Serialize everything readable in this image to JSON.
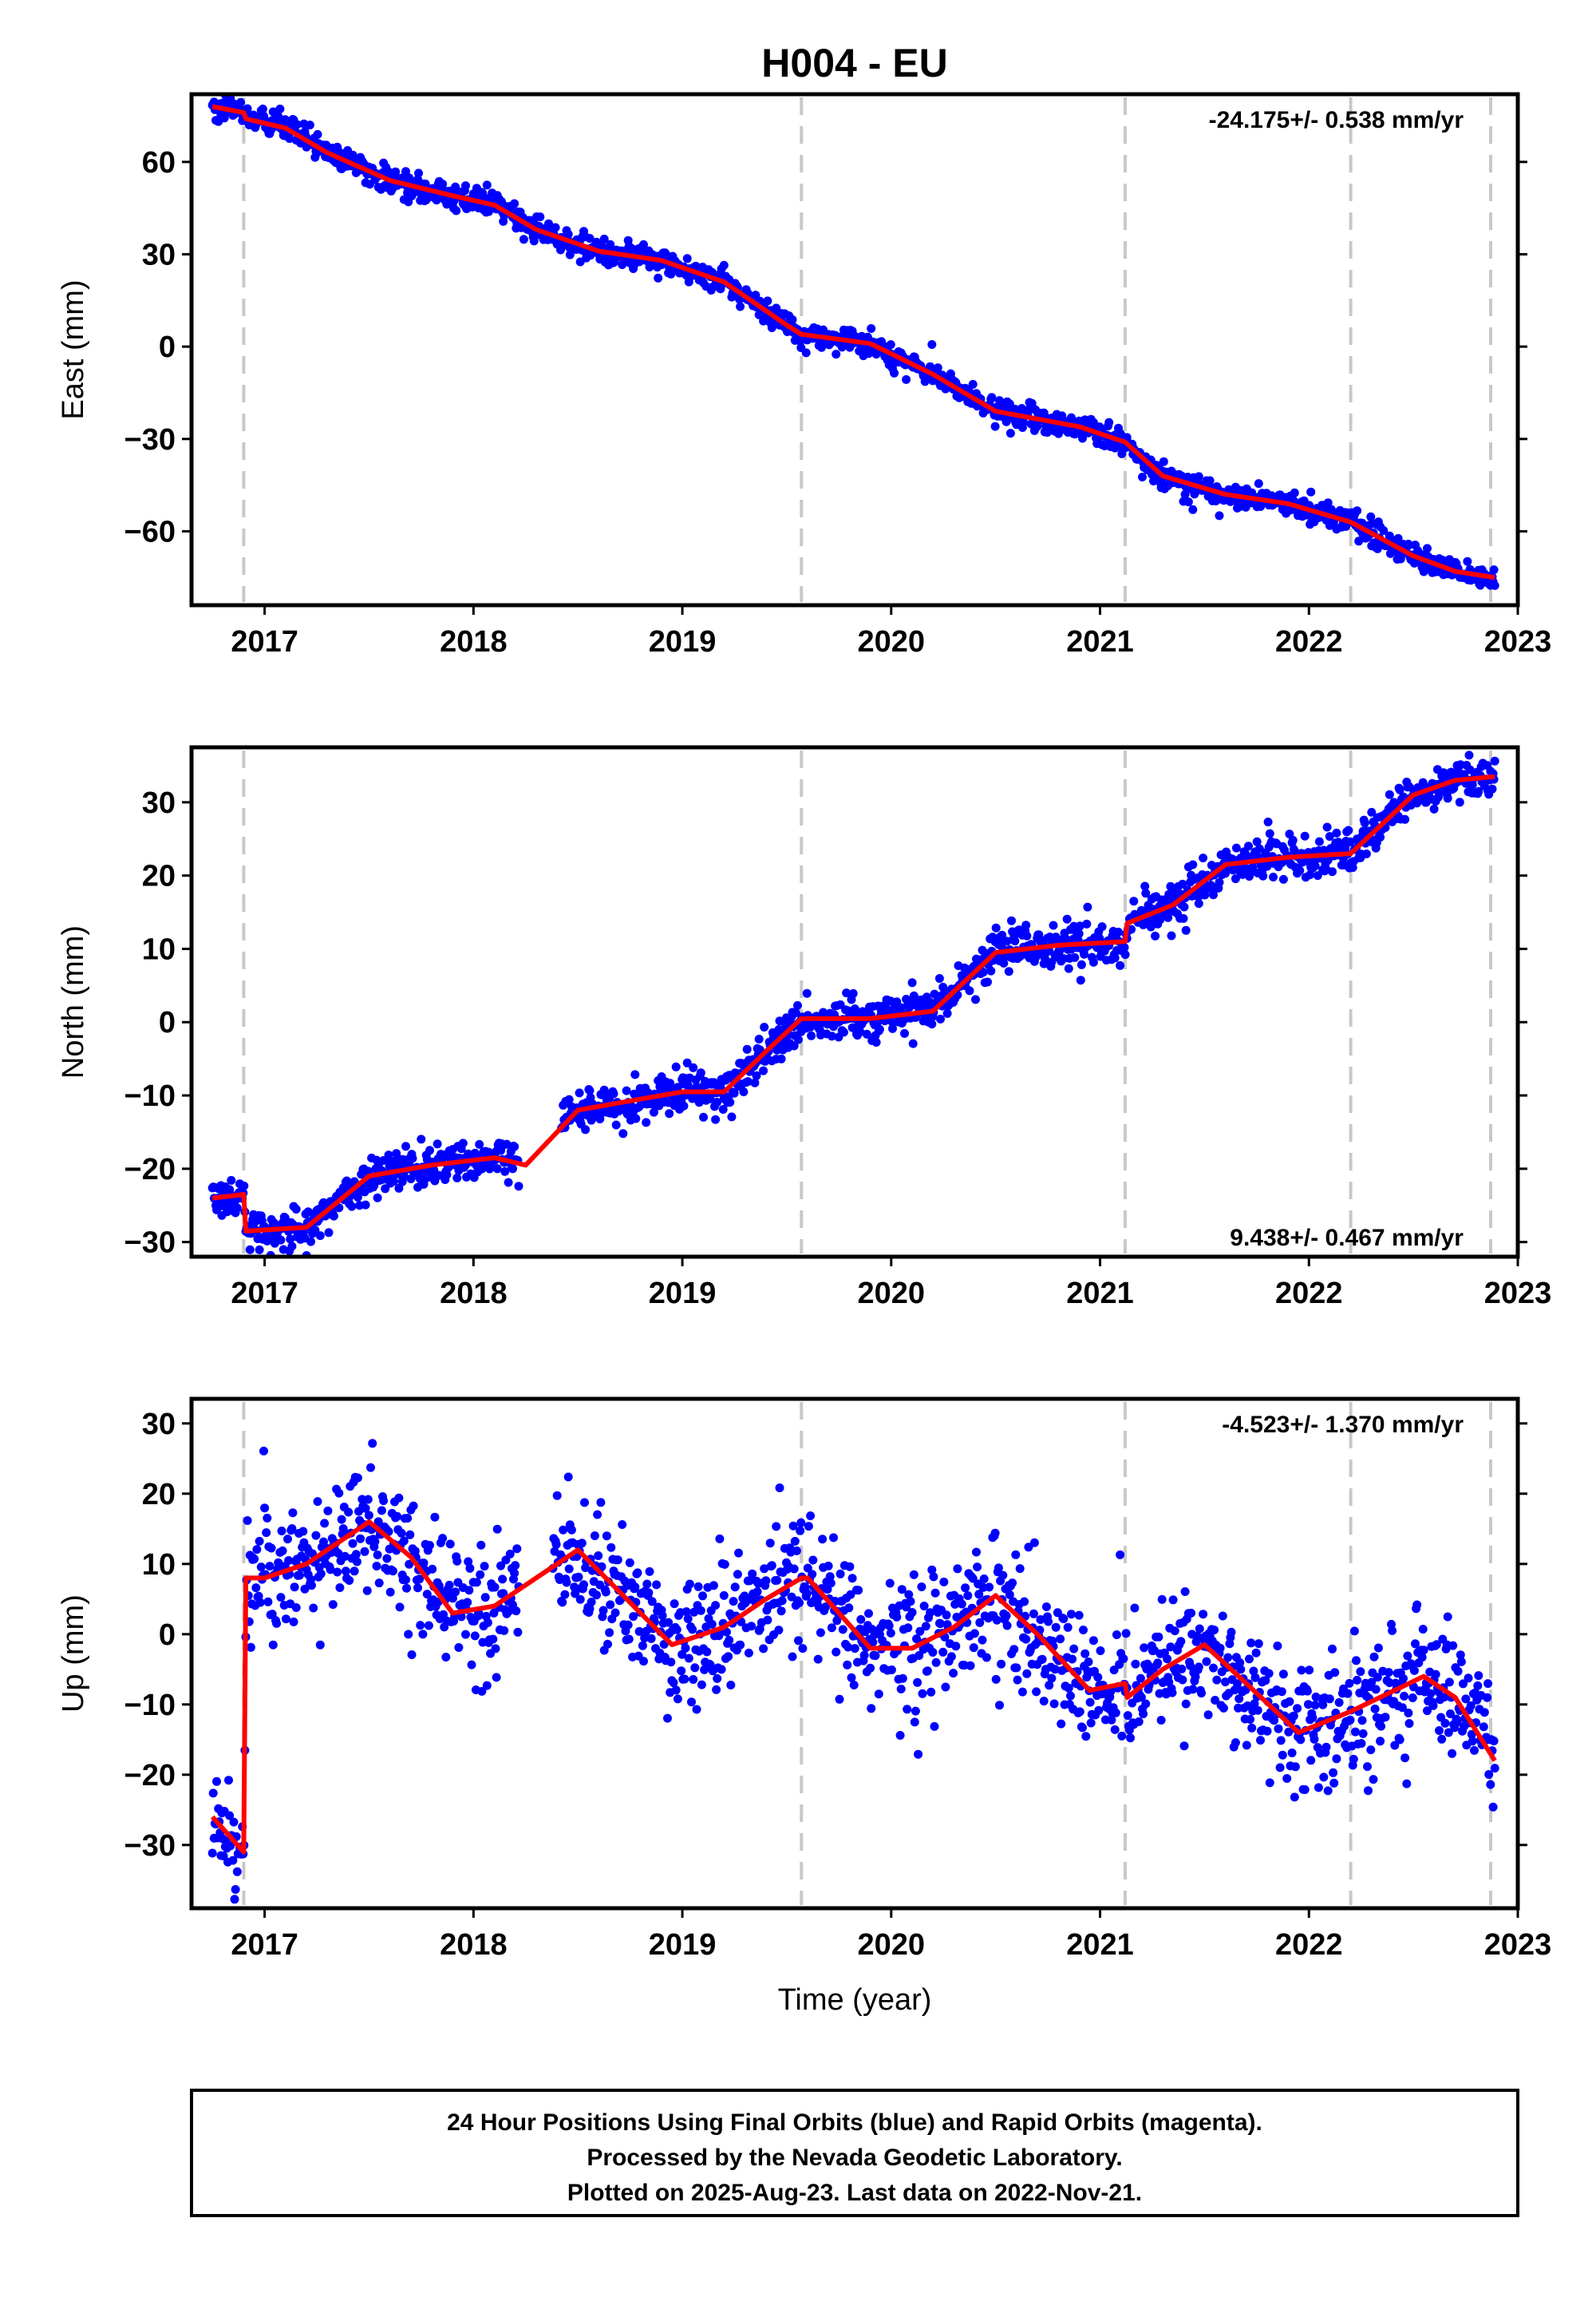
{
  "title": "H004 - EU",
  "colors": {
    "points": "#0000ff",
    "model": "#ff0000",
    "event_line": "#c8c8c8",
    "frame": "#000000"
  },
  "xlabel": "Time (year)",
  "footer": {
    "line1": "24 Hour Positions Using Final Orbits (blue) and Rapid Orbits (magenta).",
    "line2": "Processed by the Nevada Geodetic Laboratory.",
    "line3": "Plotted on 2025-Aug-23. Last data on 2022-Nov-21."
  },
  "chart_data": [
    {
      "type": "scatter",
      "component": "east",
      "ylabel": "East (mm)",
      "rate_label": "-24.175+/- 0.538 mm/yr",
      "xlim": [
        2016.65,
        2023.0
      ],
      "ylim": [
        -84,
        82
      ],
      "xticks": [
        2017,
        2018,
        2019,
        2020,
        2021,
        2022,
        2023
      ],
      "yticks": [
        -60,
        -30,
        0,
        30,
        60
      ],
      "ytick_labels": [
        "−60",
        "−30",
        "0",
        "30",
        "60"
      ],
      "event_lines": [
        2016.9,
        2019.57,
        2021.12,
        2022.2,
        2022.87
      ],
      "data_range": [
        2016.75,
        2022.89
      ],
      "noise_mm": 2.0,
      "outlier_rate": 0.01,
      "model_curve": [
        [
          2016.75,
          78
        ],
        [
          2016.9,
          76
        ],
        [
          2016.91,
          74
        ],
        [
          2017.1,
          71
        ],
        [
          2017.3,
          63
        ],
        [
          2017.6,
          54
        ],
        [
          2017.9,
          49
        ],
        [
          2018.1,
          46
        ],
        [
          2018.3,
          38
        ],
        [
          2018.6,
          31
        ],
        [
          2018.9,
          28
        ],
        [
          2019.2,
          21
        ],
        [
          2019.5,
          7
        ],
        [
          2019.57,
          4
        ],
        [
          2019.9,
          1
        ],
        [
          2020.2,
          -9
        ],
        [
          2020.5,
          -21
        ],
        [
          2020.9,
          -26
        ],
        [
          2021.12,
          -31
        ],
        [
          2021.3,
          -42
        ],
        [
          2021.6,
          -48
        ],
        [
          2021.9,
          -51
        ],
        [
          2022.2,
          -57
        ],
        [
          2022.5,
          -68
        ],
        [
          2022.7,
          -73
        ],
        [
          2022.89,
          -75
        ]
      ]
    },
    {
      "type": "scatter",
      "component": "north",
      "ylabel": "North (mm)",
      "rate_label": "9.438+/- 0.467 mm/yr",
      "xlim": [
        2016.65,
        2023.0
      ],
      "ylim": [
        -32,
        37.5
      ],
      "xticks": [
        2017,
        2018,
        2019,
        2020,
        2021,
        2022,
        2023
      ],
      "yticks": [
        -30,
        -20,
        -10,
        0,
        10,
        20,
        30
      ],
      "ytick_labels": [
        "−30",
        "−20",
        "−10",
        "0",
        "10",
        "20",
        "30"
      ],
      "event_lines": [
        2016.9,
        2019.57,
        2021.12,
        2022.2,
        2022.87
      ],
      "data_range": [
        2016.75,
        2022.89
      ],
      "data_gap": [
        2018.22,
        2018.42
      ],
      "noise_mm": 1.4,
      "outlier_rate": 0.01,
      "model_curve": [
        [
          2016.75,
          -24
        ],
        [
          2016.9,
          -23.5
        ],
        [
          2016.91,
          -28.5
        ],
        [
          2017.2,
          -28
        ],
        [
          2017.5,
          -21
        ],
        [
          2017.8,
          -19.5
        ],
        [
          2018.1,
          -18.5
        ],
        [
          2018.25,
          -19.5
        ],
        [
          2018.5,
          -12
        ],
        [
          2018.8,
          -10.5
        ],
        [
          2019.0,
          -9.5
        ],
        [
          2019.2,
          -9.5
        ],
        [
          2019.4,
          -4
        ],
        [
          2019.57,
          0.5
        ],
        [
          2019.9,
          0.5
        ],
        [
          2020.2,
          1.5
        ],
        [
          2020.5,
          9.5
        ],
        [
          2020.8,
          10.5
        ],
        [
          2021.12,
          11
        ],
        [
          2021.13,
          13.5
        ],
        [
          2021.35,
          16
        ],
        [
          2021.6,
          21.5
        ],
        [
          2021.9,
          22.5
        ],
        [
          2022.2,
          23
        ],
        [
          2022.5,
          31
        ],
        [
          2022.7,
          33
        ],
        [
          2022.89,
          33.5
        ]
      ]
    },
    {
      "type": "scatter",
      "component": "up",
      "ylabel": "Up (mm)",
      "rate_label": "-4.523+/- 1.370 mm/yr",
      "xlim": [
        2016.65,
        2023.0
      ],
      "ylim": [
        -39,
        33.5
      ],
      "xticks": [
        2017,
        2018,
        2019,
        2020,
        2021,
        2022,
        2023
      ],
      "yticks": [
        -30,
        -20,
        -10,
        0,
        10,
        20,
        30
      ],
      "ytick_labels": [
        "−30",
        "−20",
        "−10",
        "0",
        "10",
        "20",
        "30"
      ],
      "event_lines": [
        2016.9,
        2019.57,
        2021.12,
        2022.2,
        2022.87
      ],
      "data_range": [
        2016.75,
        2022.89
      ],
      "data_gap": [
        2018.22,
        2018.38
      ],
      "noise_mm": 4.5,
      "outlier_rate": 0.02,
      "model_curve": [
        [
          2016.75,
          -26
        ],
        [
          2016.9,
          -31
        ],
        [
          2016.91,
          8
        ],
        [
          2017.0,
          8
        ],
        [
          2017.2,
          10
        ],
        [
          2017.5,
          16
        ],
        [
          2017.7,
          11
        ],
        [
          2017.9,
          3
        ],
        [
          2018.1,
          4
        ],
        [
          2018.3,
          8
        ],
        [
          2018.5,
          12
        ],
        [
          2018.7,
          6
        ],
        [
          2018.95,
          -1.5
        ],
        [
          2019.2,
          1
        ],
        [
          2019.4,
          5
        ],
        [
          2019.57,
          8
        ],
        [
          2019.6,
          8
        ],
        [
          2019.9,
          -2
        ],
        [
          2020.1,
          -2
        ],
        [
          2020.3,
          1
        ],
        [
          2020.5,
          5.5
        ],
        [
          2020.7,
          0
        ],
        [
          2020.95,
          -8
        ],
        [
          2021.12,
          -7
        ],
        [
          2021.13,
          -9
        ],
        [
          2021.3,
          -5
        ],
        [
          2021.5,
          -1.5
        ],
        [
          2021.7,
          -7
        ],
        [
          2021.95,
          -14
        ],
        [
          2022.2,
          -11
        ],
        [
          2022.55,
          -6
        ],
        [
          2022.7,
          -9
        ],
        [
          2022.89,
          -18
        ]
      ]
    }
  ]
}
